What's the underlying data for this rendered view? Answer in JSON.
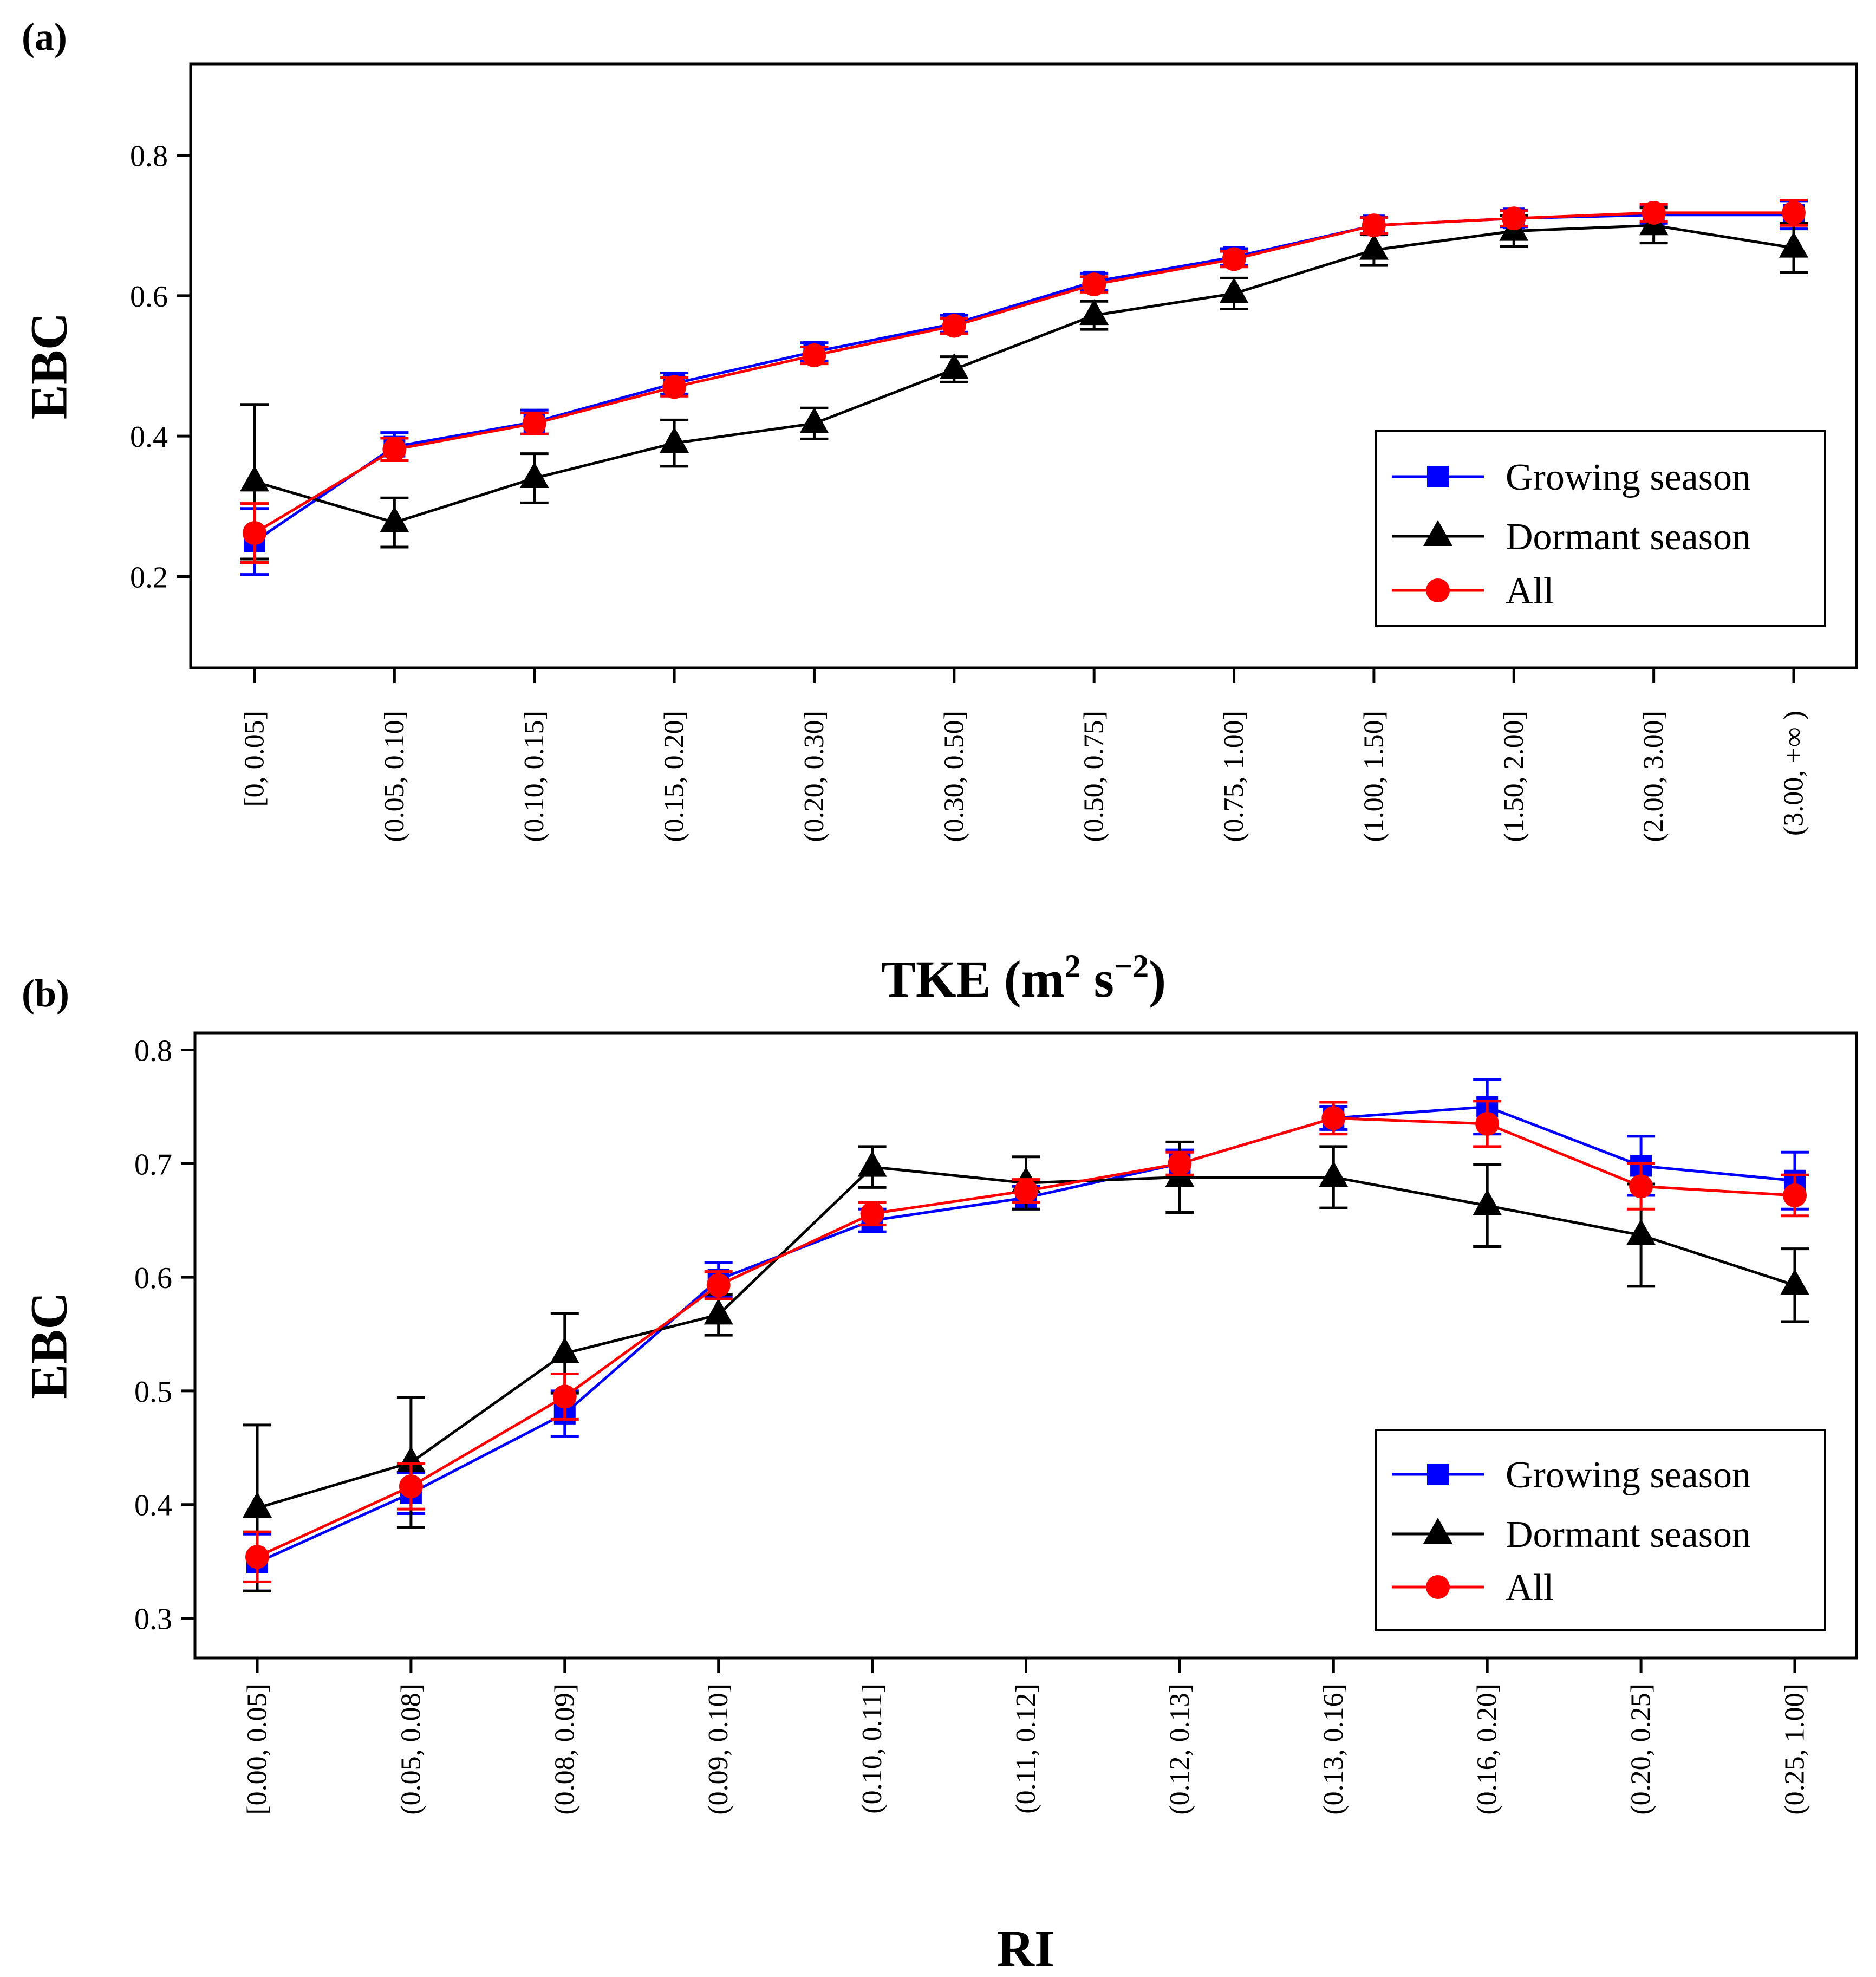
{
  "chart_data": [
    {
      "type": "line",
      "panel_label": "(a)",
      "xlabel": "TKE",
      "xlabel_unit": {
        "base": "(m",
        "exp1": "2",
        "mid": " s",
        "exp2": "−2",
        "end": ")"
      },
      "ylabel": "EBC",
      "ylim": [
        0.07,
        0.93
      ],
      "yticks": [
        0.2,
        0.4,
        0.6,
        0.8
      ],
      "ytick_labels": [
        "0.2",
        "0.4",
        "0.6",
        "0.8"
      ],
      "categories": [
        "[0, 0.05]",
        "(0.05, 0.10]",
        "(0.10, 0.15]",
        "(0.15, 0.20]",
        "(0.20, 0.30]",
        "(0.30, 0.50]",
        "(0.50, 0.75]",
        "(0.75, 1.00]",
        "(1.00, 1.50]",
        "(1.50, 2.00]",
        "(2.00, 3.00]",
        "(3.00, +∞ )"
      ],
      "legend_position": "right",
      "series": [
        {
          "name": "Growing season",
          "color": "#0000ff",
          "marker": "square",
          "values": [
            0.25,
            0.385,
            0.42,
            0.475,
            0.52,
            0.56,
            0.62,
            0.655,
            0.7,
            0.71,
            0.715,
            0.715
          ],
          "errors": [
            0.047,
            0.02,
            0.017,
            0.015,
            0.013,
            0.012,
            0.012,
            0.012,
            0.012,
            0.012,
            0.012,
            0.02
          ]
        },
        {
          "name": "Dormant season",
          "color": "#000000",
          "marker": "triangle",
          "values": [
            0.335,
            0.277,
            0.34,
            0.39,
            0.418,
            0.495,
            0.572,
            0.603,
            0.665,
            0.692,
            0.7,
            0.668
          ],
          "errors": [
            0.11,
            0.035,
            0.035,
            0.033,
            0.022,
            0.018,
            0.02,
            0.022,
            0.022,
            0.022,
            0.025,
            0.035
          ]
        },
        {
          "name": "All",
          "color": "#ff0000",
          "marker": "circle",
          "values": [
            0.262,
            0.381,
            0.418,
            0.47,
            0.515,
            0.557,
            0.616,
            0.652,
            0.7,
            0.71,
            0.718,
            0.718
          ],
          "errors": [
            0.042,
            0.016,
            0.015,
            0.013,
            0.012,
            0.011,
            0.011,
            0.011,
            0.011,
            0.011,
            0.012,
            0.018
          ]
        }
      ]
    },
    {
      "type": "line",
      "panel_label": "(b)",
      "xlabel": "RI",
      "ylabel": "EBC",
      "ylim": [
        0.265,
        0.815
      ],
      "yticks": [
        0.3,
        0.4,
        0.5,
        0.6,
        0.7,
        0.8
      ],
      "ytick_labels": [
        "0.3",
        "0.4",
        "0.5",
        "0.6",
        "0.7",
        "0.8"
      ],
      "categories": [
        "[0.00, 0.05]",
        "(0.05, 0.08]",
        "(0.08, 0.09]",
        "(0.09, 0.10]",
        "(0.10, 0.11]",
        "(0.11, 0.12]",
        "(0.12, 0.13]",
        "(0.13, 0.16]",
        "(0.16, 0.20]",
        "(0.20, 0.25]",
        "(0.25, 1.00]"
      ],
      "legend_position": "bottom-right",
      "series": [
        {
          "name": "Growing season",
          "color": "#0000ff",
          "marker": "square",
          "values": [
            0.349,
            0.41,
            0.48,
            0.598,
            0.65,
            0.67,
            0.7,
            0.74,
            0.75,
            0.698,
            0.685
          ],
          "errors": [
            0.025,
            0.018,
            0.02,
            0.015,
            0.01,
            0.01,
            0.012,
            0.01,
            0.024,
            0.026,
            0.025
          ]
        },
        {
          "name": "Dormant season",
          "color": "#000000",
          "marker": "triangle",
          "values": [
            0.397,
            0.437,
            0.533,
            0.567,
            0.697,
            0.683,
            0.688,
            0.688,
            0.663,
            0.637,
            0.593
          ],
          "errors": [
            0.073,
            0.057,
            0.035,
            0.018,
            0.018,
            0.023,
            0.031,
            0.027,
            0.036,
            0.045,
            0.032
          ]
        },
        {
          "name": "All",
          "color": "#ff0000",
          "marker": "circle",
          "values": [
            0.354,
            0.416,
            0.495,
            0.593,
            0.656,
            0.676,
            0.7,
            0.74,
            0.735,
            0.68,
            0.672
          ],
          "errors": [
            0.022,
            0.02,
            0.02,
            0.012,
            0.01,
            0.01,
            0.01,
            0.014,
            0.02,
            0.02,
            0.018
          ]
        }
      ]
    }
  ]
}
